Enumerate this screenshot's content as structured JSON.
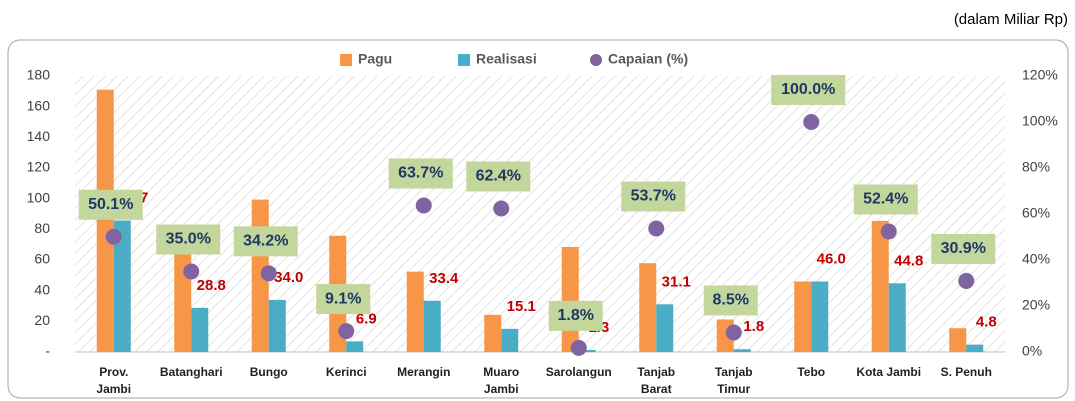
{
  "chart_data": {
    "type": "bar",
    "unit_note": "(dalam Miliar Rp)",
    "categories": [
      "Prov. Jambi",
      "Batanghari",
      "Bungo",
      "Kerinci",
      "Merangin",
      "Muaro Jambi",
      "Sarolangun",
      "Tanjab Barat",
      "Tanjab Timur",
      "Tebo",
      "Kota Jambi",
      "S. Penuh"
    ],
    "series": [
      {
        "name": "Pagu",
        "color": "#f79646",
        "values": [
          171.1,
          82.3,
          99.4,
          75.8,
          52.4,
          24.2,
          68.5,
          57.9,
          21.2,
          46.0,
          85.5,
          15.5
        ]
      },
      {
        "name": "Realisasi",
        "color": "#4bacc6",
        "values": [
          85.7,
          28.8,
          34.0,
          6.9,
          33.4,
          15.1,
          1.3,
          31.1,
          1.8,
          46.0,
          44.8,
          4.8
        ],
        "value_labels": [
          "85.7",
          "28.8",
          "34.0",
          "6.9",
          "33.4",
          "15.1",
          "1.3",
          "31.1",
          "1.8",
          "46.0",
          "44.8",
          "4.8"
        ],
        "label_color": "#c00000"
      },
      {
        "name": "Capaian (%)",
        "color": "#8064a2",
        "axis": "y2",
        "kind": "scatter",
        "values": [
          50.1,
          35.0,
          34.2,
          9.1,
          63.7,
          62.4,
          1.8,
          53.7,
          8.5,
          100.0,
          52.4,
          30.9
        ],
        "value_labels": [
          "50.1%",
          "35.0%",
          "34.2%",
          "9.1%",
          "63.7%",
          "62.4%",
          "1.8%",
          "53.7%",
          "8.5%",
          "100.0%",
          "52.4%",
          "30.9%"
        ],
        "label_color": "#1f3864",
        "label_box_color": "#c3d69b"
      }
    ],
    "ylim": [
      0,
      180
    ],
    "yticks": [
      {
        "value": 0,
        "label": "-"
      },
      20,
      40,
      60,
      80,
      100,
      120,
      140,
      160,
      180
    ],
    "y2lim": [
      0,
      120
    ],
    "y2ticks": [
      {
        "value": 0,
        "label": "0%"
      },
      {
        "value": 20,
        "label": "20%"
      },
      {
        "value": 40,
        "label": "40%"
      },
      {
        "value": 60,
        "label": "60%"
      },
      {
        "value": 80,
        "label": "80%"
      },
      {
        "value": 100,
        "label": "100%"
      },
      {
        "value": 120,
        "label": "120%"
      }
    ],
    "legend": "top",
    "grid": false
  }
}
